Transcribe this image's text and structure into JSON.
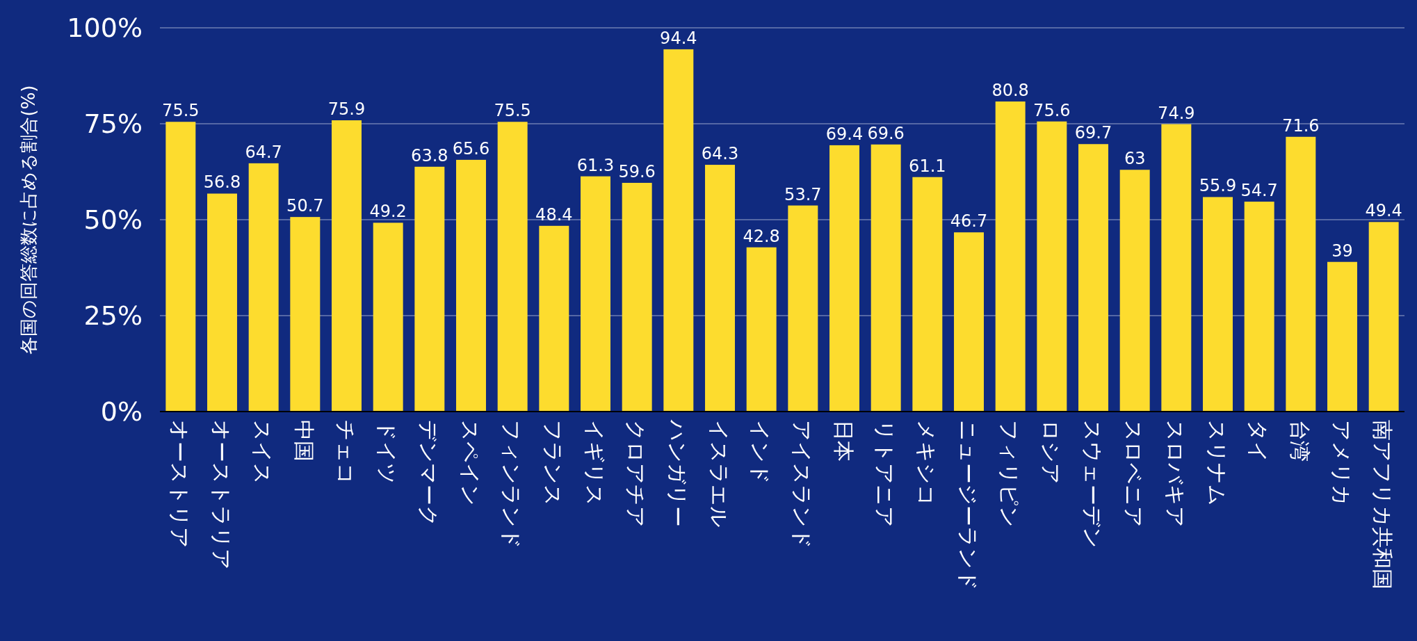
{
  "chart_data": {
    "type": "bar",
    "ylabel": "各国の回答総数に占める割合(%)",
    "categories": [
      "オーストリア",
      "オーストラリア",
      "スイス",
      "中国",
      "チェコ",
      "ドイツ",
      "デンマーク",
      "スペイン",
      "フィンランド",
      "フランス",
      "イギリス",
      "クロアチア",
      "ハンガリー",
      "イスラエル",
      "インド",
      "アイスランド",
      "日本",
      "リトアニア",
      "メキシコ",
      "ニュージーランド",
      "フィリピン",
      "ロシア",
      "スウェーデン",
      "スロベニア",
      "スロバキア",
      "スリナム",
      "タイ",
      "台湾",
      "アメリカ",
      "南アフリカ共和国"
    ],
    "values": [
      75.5,
      56.8,
      64.7,
      50.7,
      75.9,
      49.2,
      63.8,
      65.6,
      75.5,
      48.4,
      61.3,
      59.6,
      94.4,
      64.3,
      42.8,
      53.7,
      69.4,
      69.6,
      61.1,
      46.7,
      80.8,
      75.6,
      69.7,
      63,
      74.9,
      55.9,
      54.7,
      71.6,
      39,
      49.4
    ],
    "color": "#fddc2e",
    "ylim": [
      0,
      100
    ],
    "yticks": [
      {
        "value": 0,
        "label": "0%"
      },
      {
        "value": 25,
        "label": "25%"
      },
      {
        "value": 50,
        "label": "50%"
      },
      {
        "value": 75,
        "label": "75%"
      },
      {
        "value": 100,
        "label": "100%"
      }
    ],
    "grid": "y",
    "data_labels": true
  }
}
